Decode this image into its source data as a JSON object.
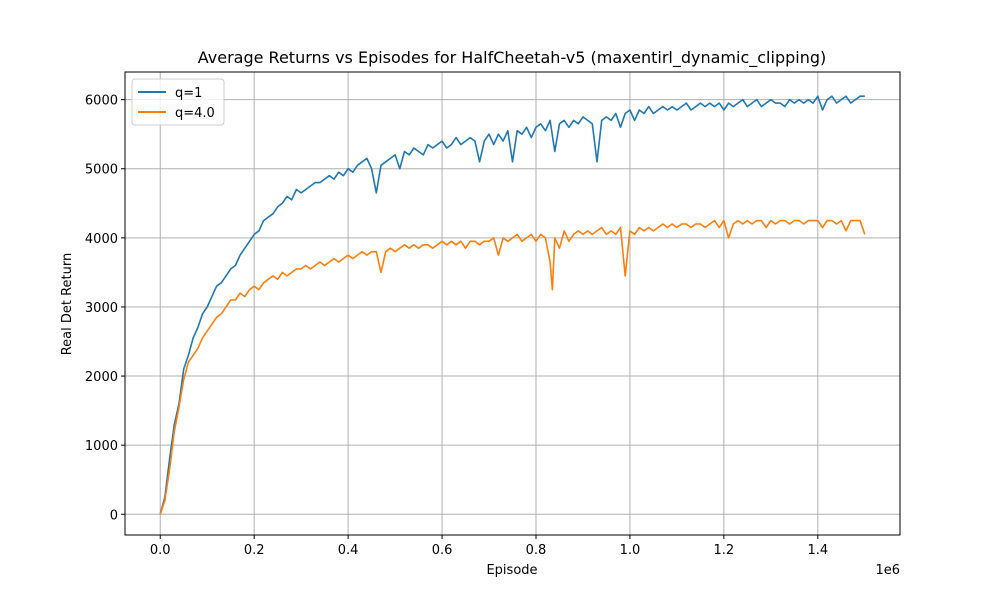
{
  "chart_data": {
    "type": "line",
    "title": "Average Returns vs Episodes for HalfCheetah-v5 (maxentirl_dynamic_clipping)",
    "xlabel": "Episode",
    "ylabel": "Real Det Return",
    "x_offset_label": "1e6",
    "xlim": [
      -0.075,
      1.575
    ],
    "ylim": [
      -300,
      6400
    ],
    "x_ticks": [
      0.0,
      0.2,
      0.4,
      0.6,
      0.8,
      1.0,
      1.2,
      1.4
    ],
    "x_tick_labels": [
      "0.0",
      "0.2",
      "0.4",
      "0.6",
      "0.8",
      "1.0",
      "1.2",
      "1.4"
    ],
    "y_ticks": [
      0,
      1000,
      2000,
      3000,
      4000,
      5000,
      6000
    ],
    "y_tick_labels": [
      "0",
      "1000",
      "2000",
      "3000",
      "4000",
      "5000",
      "6000"
    ],
    "grid": true,
    "legend_position": "upper-left",
    "series": [
      {
        "name": "q=1",
        "color": "#1f77b4",
        "points": [
          [
            0.0,
            0
          ],
          [
            0.01,
            250
          ],
          [
            0.02,
            800
          ],
          [
            0.03,
            1300
          ],
          [
            0.04,
            1600
          ],
          [
            0.05,
            2100
          ],
          [
            0.06,
            2300
          ],
          [
            0.07,
            2550
          ],
          [
            0.08,
            2700
          ],
          [
            0.09,
            2900
          ],
          [
            0.1,
            3000
          ],
          [
            0.11,
            3150
          ],
          [
            0.12,
            3300
          ],
          [
            0.13,
            3350
          ],
          [
            0.14,
            3450
          ],
          [
            0.15,
            3550
          ],
          [
            0.16,
            3600
          ],
          [
            0.17,
            3750
          ],
          [
            0.18,
            3850
          ],
          [
            0.19,
            3950
          ],
          [
            0.2,
            4050
          ],
          [
            0.21,
            4100
          ],
          [
            0.22,
            4250
          ],
          [
            0.23,
            4300
          ],
          [
            0.24,
            4350
          ],
          [
            0.25,
            4450
          ],
          [
            0.26,
            4500
          ],
          [
            0.27,
            4600
          ],
          [
            0.28,
            4550
          ],
          [
            0.29,
            4700
          ],
          [
            0.3,
            4650
          ],
          [
            0.31,
            4700
          ],
          [
            0.32,
            4750
          ],
          [
            0.33,
            4800
          ],
          [
            0.34,
            4800
          ],
          [
            0.35,
            4850
          ],
          [
            0.36,
            4900
          ],
          [
            0.37,
            4850
          ],
          [
            0.38,
            4950
          ],
          [
            0.39,
            4900
          ],
          [
            0.4,
            5000
          ],
          [
            0.41,
            4950
          ],
          [
            0.42,
            5050
          ],
          [
            0.43,
            5100
          ],
          [
            0.44,
            5150
          ],
          [
            0.45,
            5000
          ],
          [
            0.46,
            4650
          ],
          [
            0.47,
            5050
          ],
          [
            0.48,
            5100
          ],
          [
            0.49,
            5150
          ],
          [
            0.5,
            5200
          ],
          [
            0.51,
            5000
          ],
          [
            0.52,
            5250
          ],
          [
            0.53,
            5200
          ],
          [
            0.54,
            5300
          ],
          [
            0.55,
            5250
          ],
          [
            0.56,
            5200
          ],
          [
            0.57,
            5350
          ],
          [
            0.58,
            5300
          ],
          [
            0.59,
            5350
          ],
          [
            0.6,
            5400
          ],
          [
            0.61,
            5300
          ],
          [
            0.62,
            5350
          ],
          [
            0.63,
            5450
          ],
          [
            0.64,
            5350
          ],
          [
            0.65,
            5400
          ],
          [
            0.66,
            5450
          ],
          [
            0.67,
            5400
          ],
          [
            0.68,
            5100
          ],
          [
            0.69,
            5400
          ],
          [
            0.7,
            5500
          ],
          [
            0.71,
            5350
          ],
          [
            0.72,
            5500
          ],
          [
            0.73,
            5400
          ],
          [
            0.74,
            5550
          ],
          [
            0.75,
            5100
          ],
          [
            0.76,
            5550
          ],
          [
            0.77,
            5500
          ],
          [
            0.78,
            5600
          ],
          [
            0.79,
            5450
          ],
          [
            0.8,
            5600
          ],
          [
            0.81,
            5650
          ],
          [
            0.82,
            5550
          ],
          [
            0.83,
            5700
          ],
          [
            0.84,
            5250
          ],
          [
            0.85,
            5650
          ],
          [
            0.86,
            5700
          ],
          [
            0.87,
            5600
          ],
          [
            0.88,
            5700
          ],
          [
            0.89,
            5650
          ],
          [
            0.9,
            5750
          ],
          [
            0.91,
            5700
          ],
          [
            0.92,
            5650
          ],
          [
            0.93,
            5100
          ],
          [
            0.94,
            5700
          ],
          [
            0.95,
            5750
          ],
          [
            0.96,
            5700
          ],
          [
            0.97,
            5800
          ],
          [
            0.98,
            5600
          ],
          [
            0.99,
            5800
          ],
          [
            1.0,
            5850
          ],
          [
            1.01,
            5700
          ],
          [
            1.02,
            5850
          ],
          [
            1.03,
            5800
          ],
          [
            1.04,
            5900
          ],
          [
            1.05,
            5800
          ],
          [
            1.06,
            5850
          ],
          [
            1.07,
            5900
          ],
          [
            1.08,
            5850
          ],
          [
            1.09,
            5900
          ],
          [
            1.1,
            5850
          ],
          [
            1.11,
            5900
          ],
          [
            1.12,
            5950
          ],
          [
            1.13,
            5850
          ],
          [
            1.14,
            5900
          ],
          [
            1.15,
            5950
          ],
          [
            1.16,
            5900
          ],
          [
            1.17,
            5950
          ],
          [
            1.18,
            5900
          ],
          [
            1.19,
            5950
          ],
          [
            1.2,
            5850
          ],
          [
            1.21,
            5950
          ],
          [
            1.22,
            5900
          ],
          [
            1.23,
            5950
          ],
          [
            1.24,
            6000
          ],
          [
            1.25,
            5900
          ],
          [
            1.26,
            5950
          ],
          [
            1.27,
            6000
          ],
          [
            1.28,
            5900
          ],
          [
            1.29,
            5950
          ],
          [
            1.3,
            6000
          ],
          [
            1.31,
            5950
          ],
          [
            1.32,
            5950
          ],
          [
            1.33,
            5900
          ],
          [
            1.34,
            6000
          ],
          [
            1.35,
            5950
          ],
          [
            1.36,
            6000
          ],
          [
            1.37,
            5950
          ],
          [
            1.38,
            6000
          ],
          [
            1.39,
            5950
          ],
          [
            1.4,
            6050
          ],
          [
            1.41,
            5850
          ],
          [
            1.42,
            6000
          ],
          [
            1.43,
            6050
          ],
          [
            1.44,
            5950
          ],
          [
            1.45,
            6000
          ],
          [
            1.46,
            6050
          ],
          [
            1.47,
            5950
          ],
          [
            1.48,
            6000
          ],
          [
            1.49,
            6050
          ],
          [
            1.5,
            6050
          ]
        ]
      },
      {
        "name": "q=4.0",
        "color": "#ff7f0e",
        "points": [
          [
            0.0,
            0
          ],
          [
            0.01,
            200
          ],
          [
            0.02,
            650
          ],
          [
            0.03,
            1200
          ],
          [
            0.04,
            1550
          ],
          [
            0.05,
            1950
          ],
          [
            0.06,
            2200
          ],
          [
            0.07,
            2300
          ],
          [
            0.08,
            2400
          ],
          [
            0.09,
            2550
          ],
          [
            0.1,
            2650
          ],
          [
            0.11,
            2750
          ],
          [
            0.12,
            2850
          ],
          [
            0.13,
            2900
          ],
          [
            0.14,
            3000
          ],
          [
            0.15,
            3100
          ],
          [
            0.16,
            3100
          ],
          [
            0.17,
            3200
          ],
          [
            0.18,
            3150
          ],
          [
            0.19,
            3250
          ],
          [
            0.2,
            3300
          ],
          [
            0.21,
            3250
          ],
          [
            0.22,
            3350
          ],
          [
            0.23,
            3400
          ],
          [
            0.24,
            3450
          ],
          [
            0.25,
            3400
          ],
          [
            0.26,
            3500
          ],
          [
            0.27,
            3450
          ],
          [
            0.28,
            3500
          ],
          [
            0.29,
            3550
          ],
          [
            0.3,
            3550
          ],
          [
            0.31,
            3600
          ],
          [
            0.32,
            3550
          ],
          [
            0.33,
            3600
          ],
          [
            0.34,
            3650
          ],
          [
            0.35,
            3600
          ],
          [
            0.36,
            3650
          ],
          [
            0.37,
            3700
          ],
          [
            0.38,
            3650
          ],
          [
            0.39,
            3700
          ],
          [
            0.4,
            3750
          ],
          [
            0.41,
            3700
          ],
          [
            0.42,
            3750
          ],
          [
            0.43,
            3800
          ],
          [
            0.44,
            3750
          ],
          [
            0.45,
            3800
          ],
          [
            0.46,
            3800
          ],
          [
            0.47,
            3500
          ],
          [
            0.48,
            3800
          ],
          [
            0.49,
            3850
          ],
          [
            0.5,
            3800
          ],
          [
            0.51,
            3850
          ],
          [
            0.52,
            3900
          ],
          [
            0.53,
            3850
          ],
          [
            0.54,
            3900
          ],
          [
            0.55,
            3850
          ],
          [
            0.56,
            3900
          ],
          [
            0.57,
            3900
          ],
          [
            0.58,
            3850
          ],
          [
            0.59,
            3900
          ],
          [
            0.6,
            3950
          ],
          [
            0.61,
            3900
          ],
          [
            0.62,
            3950
          ],
          [
            0.63,
            3900
          ],
          [
            0.64,
            3950
          ],
          [
            0.65,
            3850
          ],
          [
            0.66,
            3950
          ],
          [
            0.67,
            3950
          ],
          [
            0.68,
            3900
          ],
          [
            0.69,
            3950
          ],
          [
            0.7,
            3950
          ],
          [
            0.71,
            4000
          ],
          [
            0.72,
            3750
          ],
          [
            0.73,
            4000
          ],
          [
            0.74,
            3950
          ],
          [
            0.75,
            4000
          ],
          [
            0.76,
            4050
          ],
          [
            0.77,
            3950
          ],
          [
            0.78,
            4000
          ],
          [
            0.79,
            4050
          ],
          [
            0.8,
            3950
          ],
          [
            0.81,
            4050
          ],
          [
            0.82,
            4000
          ],
          [
            0.83,
            3650
          ],
          [
            0.835,
            3250
          ],
          [
            0.84,
            4000
          ],
          [
            0.85,
            3850
          ],
          [
            0.86,
            4100
          ],
          [
            0.87,
            3950
          ],
          [
            0.88,
            4050
          ],
          [
            0.89,
            4100
          ],
          [
            0.9,
            4050
          ],
          [
            0.91,
            4100
          ],
          [
            0.92,
            4050
          ],
          [
            0.93,
            4100
          ],
          [
            0.94,
            4150
          ],
          [
            0.95,
            4050
          ],
          [
            0.96,
            4100
          ],
          [
            0.97,
            4050
          ],
          [
            0.98,
            4150
          ],
          [
            0.99,
            3450
          ],
          [
            1.0,
            4100
          ],
          [
            1.01,
            4050
          ],
          [
            1.02,
            4150
          ],
          [
            1.03,
            4100
          ],
          [
            1.04,
            4150
          ],
          [
            1.05,
            4100
          ],
          [
            1.06,
            4150
          ],
          [
            1.07,
            4200
          ],
          [
            1.08,
            4150
          ],
          [
            1.09,
            4200
          ],
          [
            1.1,
            4150
          ],
          [
            1.11,
            4200
          ],
          [
            1.12,
            4200
          ],
          [
            1.13,
            4150
          ],
          [
            1.14,
            4200
          ],
          [
            1.15,
            4200
          ],
          [
            1.16,
            4150
          ],
          [
            1.17,
            4200
          ],
          [
            1.18,
            4250
          ],
          [
            1.19,
            4150
          ],
          [
            1.2,
            4250
          ],
          [
            1.21,
            4000
          ],
          [
            1.22,
            4200
          ],
          [
            1.23,
            4250
          ],
          [
            1.24,
            4200
          ],
          [
            1.25,
            4250
          ],
          [
            1.26,
            4200
          ],
          [
            1.27,
            4250
          ],
          [
            1.28,
            4250
          ],
          [
            1.29,
            4150
          ],
          [
            1.3,
            4250
          ],
          [
            1.31,
            4200
          ],
          [
            1.32,
            4250
          ],
          [
            1.33,
            4250
          ],
          [
            1.34,
            4200
          ],
          [
            1.35,
            4250
          ],
          [
            1.36,
            4250
          ],
          [
            1.37,
            4200
          ],
          [
            1.38,
            4250
          ],
          [
            1.39,
            4250
          ],
          [
            1.4,
            4250
          ],
          [
            1.41,
            4150
          ],
          [
            1.42,
            4250
          ],
          [
            1.43,
            4250
          ],
          [
            1.44,
            4200
          ],
          [
            1.45,
            4250
          ],
          [
            1.46,
            4100
          ],
          [
            1.47,
            4250
          ],
          [
            1.48,
            4250
          ],
          [
            1.49,
            4250
          ],
          [
            1.5,
            4050
          ]
        ]
      }
    ]
  }
}
